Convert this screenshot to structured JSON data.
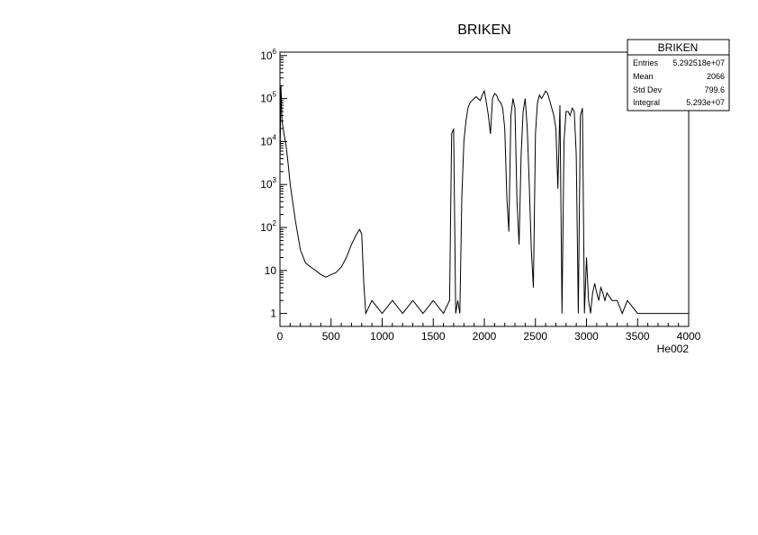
{
  "chart_data": {
    "type": "line",
    "title": "BRIKEN",
    "xlabel": "He002",
    "ylabel": "",
    "xlim": [
      0,
      4000
    ],
    "ylim": [
      0.5,
      1200000
    ],
    "yscale": "log",
    "grid": false,
    "legend": "none",
    "x_ticks": [
      "0",
      "500",
      "1000",
      "1500",
      "2000",
      "2500",
      "3000",
      "3500",
      "4000"
    ],
    "x_tick_values": [
      0,
      500,
      1000,
      1500,
      2000,
      2500,
      3000,
      3500,
      4000
    ],
    "y_ticks": [
      {
        "value": 1,
        "base": "1",
        "exp": ""
      },
      {
        "value": 10,
        "base": "10",
        "exp": ""
      },
      {
        "value": 100,
        "base": "10",
        "exp": "2"
      },
      {
        "value": 1000,
        "base": "10",
        "exp": "3"
      },
      {
        "value": 10000,
        "base": "10",
        "exp": "4"
      },
      {
        "value": 100000,
        "base": "10",
        "exp": "5"
      },
      {
        "value": 1000000,
        "base": "10",
        "exp": "6"
      }
    ],
    "series": [
      {
        "x": [
          0,
          10,
          20,
          40,
          60,
          80,
          100,
          150,
          200,
          250,
          300,
          350,
          400,
          450,
          500,
          550,
          600,
          650,
          700,
          750,
          780,
          800,
          820,
          840,
          900,
          1000,
          1100,
          1200,
          1300,
          1400,
          1500,
          1600,
          1660,
          1680,
          1700,
          1720,
          1740,
          1760,
          1780,
          1800,
          1820,
          1840,
          1860,
          1880,
          1900,
          1920,
          1940,
          1960,
          1980,
          2000,
          2020,
          2040,
          2060,
          2080,
          2100,
          2120,
          2140,
          2160,
          2180,
          2200,
          2220,
          2240,
          2260,
          2280,
          2300,
          2320,
          2340,
          2360,
          2380,
          2400,
          2420,
          2440,
          2460,
          2480,
          2500,
          2520,
          2540,
          2560,
          2580,
          2600,
          2620,
          2640,
          2660,
          2680,
          2700,
          2720,
          2740,
          2760,
          2780,
          2800,
          2820,
          2840,
          2860,
          2880,
          2900,
          2920,
          2940,
          2960,
          2980,
          3000,
          3020,
          3040,
          3060,
          3080,
          3100,
          3120,
          3140,
          3160,
          3180,
          3200,
          3250,
          3300,
          3350,
          3400,
          3500,
          3600,
          3700,
          3800,
          3900,
          4000
        ],
        "y": [
          3000,
          200000,
          30000,
          15000,
          8000,
          3000,
          1000,
          150,
          30,
          15,
          12,
          10,
          8,
          7,
          8,
          9,
          12,
          20,
          40,
          70,
          90,
          70,
          5,
          1,
          2,
          1,
          2,
          1,
          2,
          1,
          2,
          1,
          2,
          15000,
          20000,
          1,
          2,
          1,
          500,
          10000,
          30000,
          60000,
          80000,
          90000,
          100000,
          110000,
          100000,
          90000,
          120000,
          150000,
          80000,
          40000,
          15000,
          100000,
          130000,
          120000,
          90000,
          80000,
          60000,
          20000,
          500,
          80,
          40000,
          100000,
          60000,
          400,
          40,
          5000,
          50000,
          100000,
          20000,
          1000,
          30,
          4,
          15000,
          80000,
          120000,
          100000,
          120000,
          150000,
          130000,
          90000,
          60000,
          40000,
          20000,
          800,
          70000,
          1,
          10000,
          50000,
          50000,
          40000,
          60000,
          50000,
          5000,
          1,
          40000,
          60000,
          1,
          20,
          2,
          1,
          3,
          5,
          3,
          2,
          4,
          3,
          2,
          3,
          2,
          2,
          1,
          2,
          1,
          1,
          1,
          1,
          1,
          1
        ]
      }
    ]
  },
  "stats": {
    "title": "BRIKEN",
    "rows": [
      {
        "label": "Entries",
        "value": "5.292518e+07"
      },
      {
        "label": "Mean",
        "value": "2066"
      },
      {
        "label": "Std Dev",
        "value": "799.6"
      },
      {
        "label": "Integral",
        "value": "5.293e+07"
      }
    ]
  }
}
